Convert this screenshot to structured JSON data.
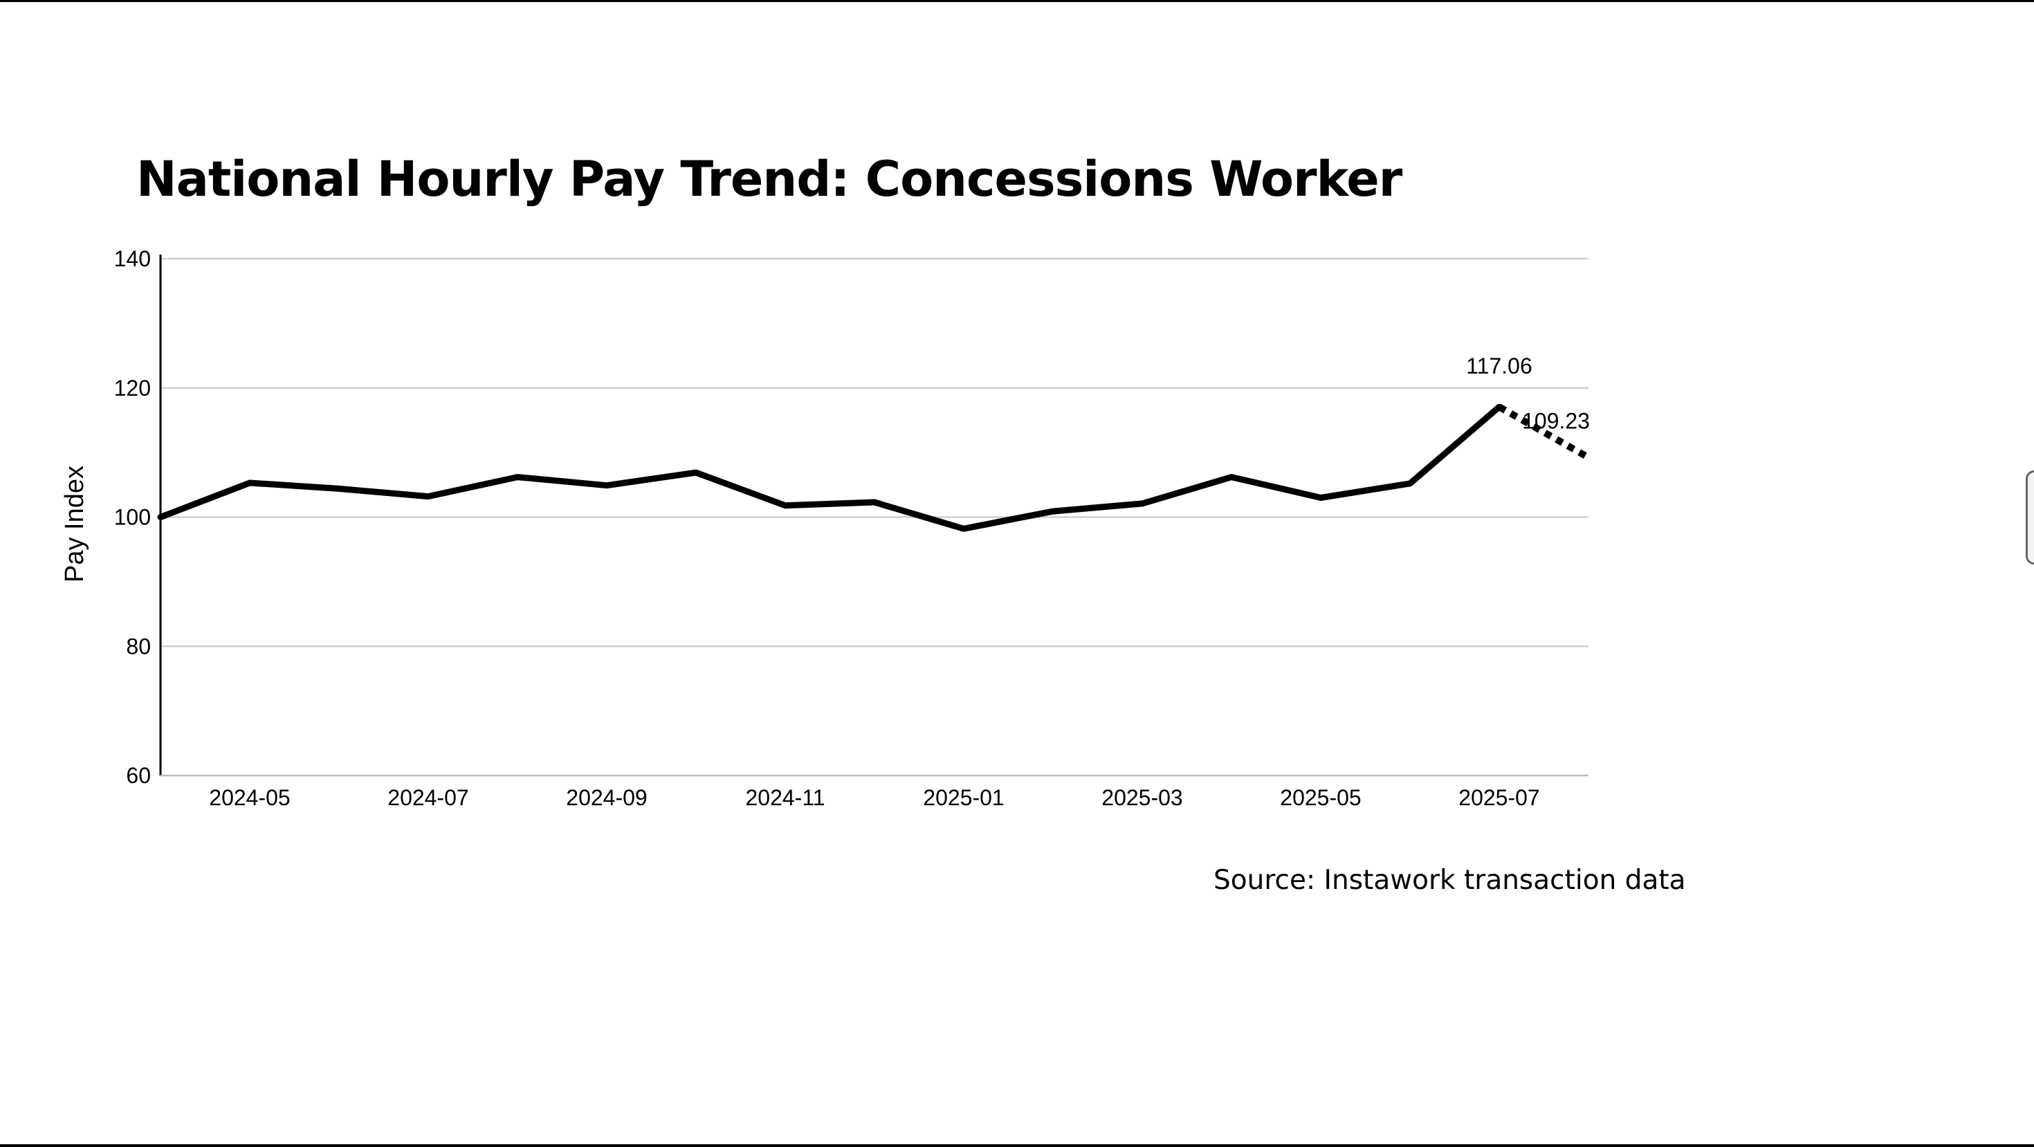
{
  "page": {
    "source_note": "Source: Instawork transaction data"
  },
  "chart_data": {
    "type": "line",
    "title": "National Hourly Pay Trend: Concessions Worker",
    "xlabel": "",
    "ylabel": "Pay Index",
    "ylim": [
      60,
      140
    ],
    "yticks": [
      60,
      80,
      100,
      120,
      140
    ],
    "xtick_labels": [
      "2024-05",
      "2024-07",
      "2024-09",
      "2024-11",
      "2025-01",
      "2025-03",
      "2025-05",
      "2025-07"
    ],
    "grid": "horizontal",
    "line_color": "#000000",
    "grid_color": "#cfcfcf",
    "series": [
      {
        "style": "solid",
        "x": [
          "2024-04",
          "2024-05",
          "2024-06",
          "2024-07",
          "2024-08",
          "2024-09",
          "2024-10",
          "2024-11",
          "2024-12",
          "2025-01",
          "2025-02",
          "2025-03",
          "2025-04",
          "2025-05",
          "2025-06",
          "2025-07"
        ],
        "values": [
          100.0,
          105.3,
          104.4,
          103.2,
          106.2,
          104.9,
          106.9,
          101.8,
          102.3,
          98.2,
          100.9,
          102.1,
          106.2,
          103.0,
          105.2,
          117.06
        ]
      },
      {
        "style": "dotted",
        "x": [
          "2025-07",
          "2025-08"
        ],
        "values": [
          117.06,
          109.23
        ]
      }
    ],
    "data_labels": [
      {
        "x": "2025-07",
        "value": 117.06,
        "text": "117.06"
      },
      {
        "x": "2025-08",
        "value": 109.23,
        "text": "109.23"
      }
    ]
  }
}
